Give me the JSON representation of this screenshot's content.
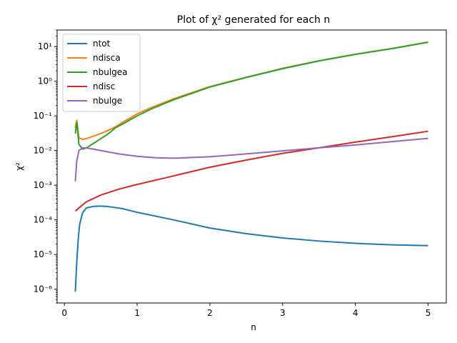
{
  "chart_data": {
    "type": "line",
    "title": "Plot of χ² generated for each n",
    "xlabel": "n",
    "ylabel": "χ²",
    "xlim": [
      -0.1,
      5.25
    ],
    "ylim": [
      4e-07,
      30
    ],
    "yscale": "log",
    "grid": false,
    "legend_position": "top-left",
    "x_ticks": [
      0,
      1,
      2,
      3,
      4,
      5
    ],
    "x_tick_labels": [
      "0",
      "1",
      "2",
      "3",
      "4",
      "5"
    ],
    "y_ticks": [
      1e-06,
      1e-05,
      0.0001,
      0.001,
      0.01,
      0.1,
      1,
      10
    ],
    "y_tick_labels": [
      "10⁻⁶",
      "10⁻⁵",
      "10⁻⁴",
      "10⁻³",
      "10⁻²",
      "10⁻¹",
      "10⁰",
      "10¹"
    ],
    "series": [
      {
        "name": "ntot",
        "color": "#1f77b4",
        "x": [
          0.15,
          0.17,
          0.19,
          0.21,
          0.25,
          0.3,
          0.4,
          0.5,
          0.6,
          0.8,
          1.0,
          1.5,
          2.0,
          2.5,
          3.0,
          3.5,
          4.0,
          4.5,
          5.0
        ],
        "y": [
          8.5e-07,
          6e-06,
          2.8e-05,
          7.5e-05,
          0.00016,
          0.00022,
          0.000245,
          0.00025,
          0.000242,
          0.00021,
          0.000165,
          0.0001,
          5.8e-05,
          4e-05,
          3e-05,
          2.45e-05,
          2.1e-05,
          1.9e-05,
          1.8e-05
        ]
      },
      {
        "name": "ndisca",
        "color": "#ff7f0e",
        "x": [
          0.15,
          0.17,
          0.2,
          0.25,
          0.3,
          0.4,
          0.5,
          0.6,
          0.7,
          0.8,
          1.0,
          1.2,
          1.5,
          2.0,
          2.5,
          3.0,
          3.5,
          4.0,
          4.5,
          5.0
        ],
        "y": [
          0.045,
          0.075,
          0.023,
          0.021,
          0.022,
          0.026,
          0.031,
          0.038,
          0.048,
          0.065,
          0.115,
          0.175,
          0.31,
          0.7,
          1.3,
          2.35,
          3.9,
          6.0,
          8.8,
          13.5
        ]
      },
      {
        "name": "nbulgea",
        "color": "#2ca02c",
        "x": [
          0.15,
          0.17,
          0.2,
          0.25,
          0.3,
          0.4,
          0.5,
          0.6,
          0.7,
          0.8,
          1.0,
          1.2,
          1.5,
          2.0,
          2.5,
          3.0,
          3.5,
          4.0,
          4.5,
          5.0
        ],
        "y": [
          0.031,
          0.065,
          0.015,
          0.011,
          0.0118,
          0.016,
          0.022,
          0.03,
          0.045,
          0.058,
          0.1,
          0.16,
          0.29,
          0.68,
          1.28,
          2.3,
          3.85,
          5.95,
          8.7,
          13.3
        ]
      },
      {
        "name": "ndisc",
        "color": "#d62728",
        "x": [
          0.15,
          0.2,
          0.3,
          0.5,
          0.75,
          1.0,
          1.5,
          2.0,
          2.5,
          3.0,
          3.5,
          4.0,
          4.5,
          5.0
        ],
        "y": [
          0.00018,
          0.00022,
          0.00033,
          0.00052,
          0.00077,
          0.00105,
          0.00185,
          0.0033,
          0.0053,
          0.0083,
          0.012,
          0.0175,
          0.025,
          0.036
        ]
      },
      {
        "name": "nbulge",
        "color": "#9467bd",
        "x": [
          0.15,
          0.17,
          0.2,
          0.25,
          0.3,
          0.4,
          0.5,
          0.75,
          1.0,
          1.25,
          1.5,
          2.0,
          2.5,
          3.0,
          3.5,
          4.0,
          4.5,
          5.0
        ],
        "y": [
          0.0013,
          0.005,
          0.01,
          0.012,
          0.0118,
          0.011,
          0.01,
          0.008,
          0.0068,
          0.0062,
          0.006,
          0.0066,
          0.008,
          0.0098,
          0.012,
          0.0145,
          0.018,
          0.0225
        ]
      }
    ]
  }
}
